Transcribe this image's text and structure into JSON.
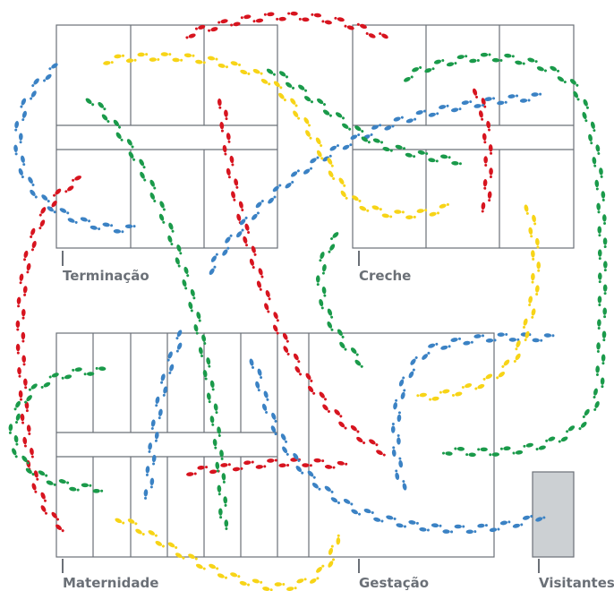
{
  "rooms": [
    {
      "label": "Terminação"
    },
    {
      "label": "Creche"
    },
    {
      "label": "Maternidade"
    },
    {
      "label": "Gestação"
    },
    {
      "label": "Visitantes"
    }
  ]
}
